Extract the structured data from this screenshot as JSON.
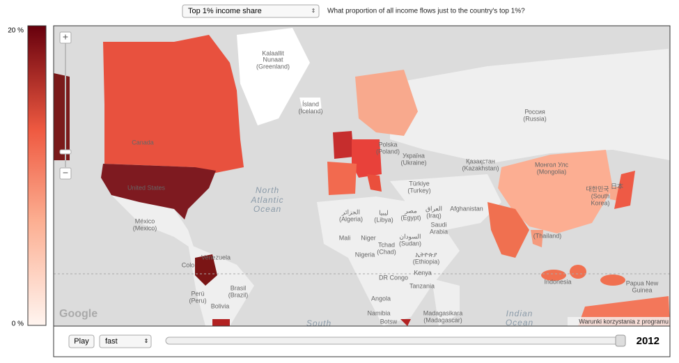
{
  "header": {
    "indicator": "Top 1% income share",
    "question": "What proportion of all income flows just to the country's top 1%?"
  },
  "legend": {
    "max_label": "20 %",
    "min_label": "0 %"
  },
  "map": {
    "zoom_in": "+",
    "zoom_out": "−",
    "labels": [
      "Kalaallit",
      "Nunaat",
      "(Greenland)",
      "Ísland",
      "(Iceland)",
      "North",
      "Atlantic",
      "Ocean",
      "México",
      "(Mexico)",
      "Venezuela",
      "Brasil",
      "(Brazil)",
      "Perú",
      "(Peru)",
      "Bolivia",
      "Polska",
      "(Poland)",
      "Україна",
      "(Ukraine)",
      "Türkiye",
      "(Turkey)",
      "Қазақстан",
      "(Kazakhstan)",
      "Россия",
      "(Russia)",
      "Монгол Улс",
      "(Mongolia)",
      "الجزائر",
      "(Algeria)",
      "ليبيا",
      "(Libya)",
      "مصر",
      "(Egypt)",
      "العراق",
      "(Iraq)",
      "Afghanistan",
      "Saudi",
      "Arabia",
      "Mali",
      "Niger",
      "Tchad",
      "(Chad)",
      "السودان",
      "(Sudan)",
      "Nigeria",
      "ኢትዮጵያ",
      "(Ethiopia)",
      "DR Congo",
      "Kenya",
      "Tanzania",
      "Angola",
      "Namibia",
      "Botsw",
      "Madagasikara",
      "(Madagascar)",
      "Indian",
      "Ocean",
      "South",
      "(Thailand)",
      "Indonesia",
      "Papua New",
      "Guinea",
      "대한민국",
      "(South",
      "Korea)",
      "日本",
      "Canada",
      "United States",
      "Colo"
    ],
    "attribution": "Google",
    "terms": "Warunki korzystania z programu"
  },
  "controls": {
    "play": "Play",
    "speed": "fast",
    "year": "2012"
  }
}
